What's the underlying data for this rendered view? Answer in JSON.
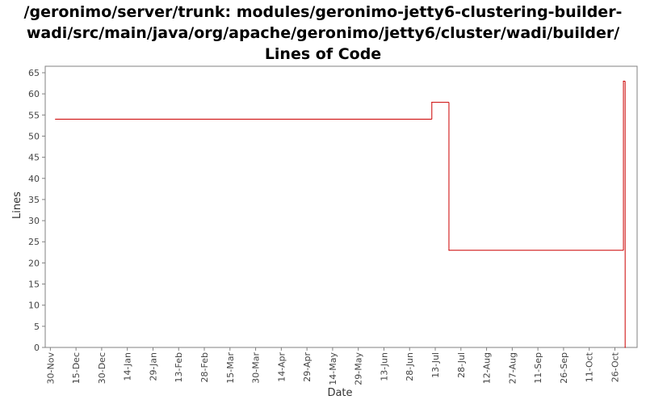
{
  "chart_data": {
    "type": "line",
    "title_lines": [
      "/geronimo/server/trunk: modules/geronimo-jetty6-clustering-builder-",
      "wadi/src/main/java/org/apache/geronimo/jetty6/cluster/wadi/builder/",
      "Lines of Code"
    ],
    "xlabel": "Date",
    "ylabel": "Lines",
    "ylim": [
      0,
      65
    ],
    "yticks": [
      0,
      5,
      10,
      15,
      20,
      25,
      30,
      35,
      40,
      45,
      50,
      55,
      60,
      65
    ],
    "xlim": [
      "2005-11-27",
      "2006-11-08"
    ],
    "xticks": [
      {
        "date": "2005-11-30",
        "label": "30-Nov"
      },
      {
        "date": "2005-12-15",
        "label": "15-Dec"
      },
      {
        "date": "2005-12-30",
        "label": "30-Dec"
      },
      {
        "date": "2006-01-14",
        "label": "14-Jan"
      },
      {
        "date": "2006-01-29",
        "label": "29-Jan"
      },
      {
        "date": "2006-02-13",
        "label": "13-Feb"
      },
      {
        "date": "2006-02-28",
        "label": "28-Feb"
      },
      {
        "date": "2006-03-15",
        "label": "15-Mar"
      },
      {
        "date": "2006-03-30",
        "label": "30-Mar"
      },
      {
        "date": "2006-04-14",
        "label": "14-Apr"
      },
      {
        "date": "2006-04-29",
        "label": "29-Apr"
      },
      {
        "date": "2006-05-14",
        "label": "14-May"
      },
      {
        "date": "2006-05-29",
        "label": "29-May"
      },
      {
        "date": "2006-06-13",
        "label": "13-Jun"
      },
      {
        "date": "2006-06-28",
        "label": "28-Jun"
      },
      {
        "date": "2006-07-13",
        "label": "13-Jul"
      },
      {
        "date": "2006-07-28",
        "label": "28-Jul"
      },
      {
        "date": "2006-08-12",
        "label": "12-Aug"
      },
      {
        "date": "2006-08-27",
        "label": "27-Aug"
      },
      {
        "date": "2006-09-11",
        "label": "11-Sep"
      },
      {
        "date": "2006-09-26",
        "label": "26-Sep"
      },
      {
        "date": "2006-10-11",
        "label": "11-Oct"
      },
      {
        "date": "2006-10-26",
        "label": "26-Oct"
      }
    ],
    "series": [
      {
        "color": "#cc0000",
        "step": true,
        "points": [
          {
            "x": "2005-12-03",
            "y": 54
          },
          {
            "x": "2006-07-11",
            "y": 58
          },
          {
            "x": "2006-07-21",
            "y": 23
          },
          {
            "x": "2006-10-31",
            "y": 63
          },
          {
            "x": "2006-11-01",
            "y": 0
          }
        ]
      }
    ],
    "grid": false,
    "legend": false
  }
}
